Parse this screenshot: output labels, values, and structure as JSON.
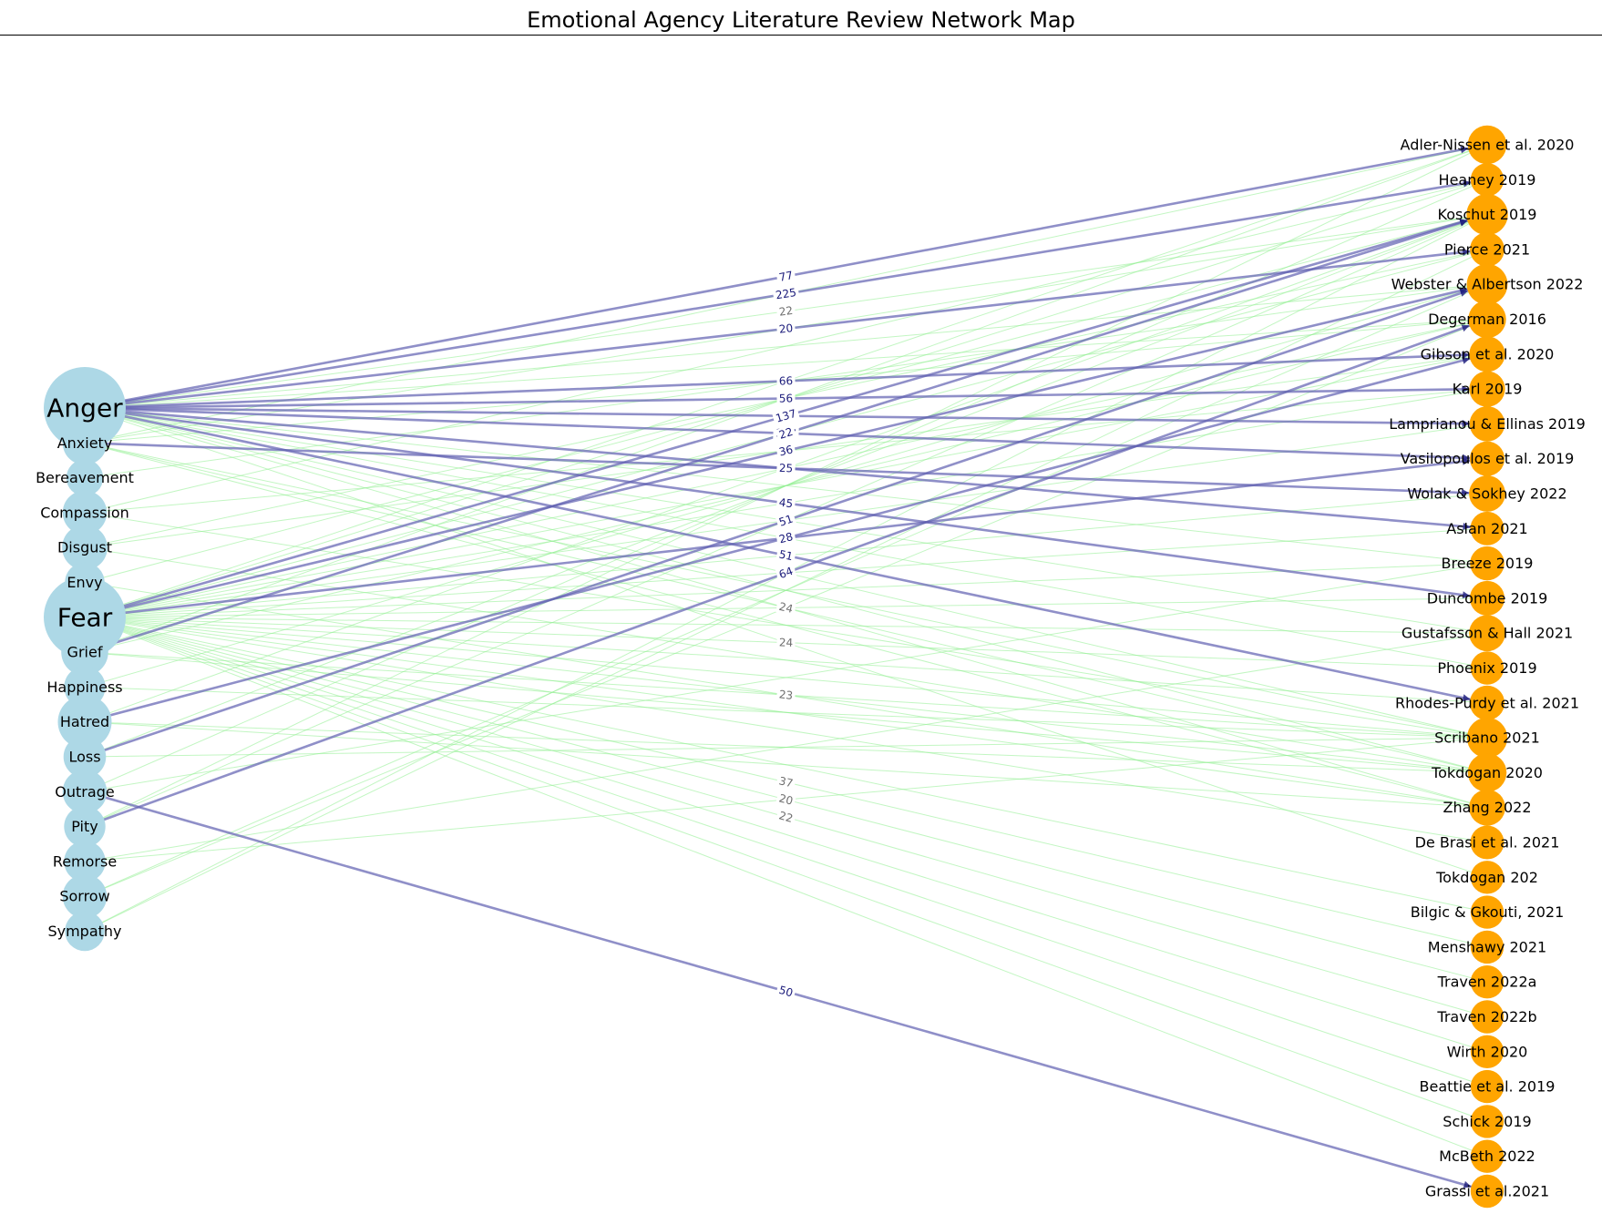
{
  "title": "Emotional Agency Literature Review Network Map",
  "colors": {
    "emotion_node": "#add8e6",
    "paper_node": "#ffa500",
    "major_edge": "#5f5fb0",
    "minor_edge": "#90ee90",
    "major_label": "#1a1a7a",
    "minor_label": "#6e6e6e"
  },
  "emotions": [
    {
      "name": "Anger",
      "size": 1.0
    },
    {
      "name": "Anxiety",
      "size": 0.33
    },
    {
      "name": "Bereavement",
      "size": 0.2
    },
    {
      "name": "Compassion",
      "size": 0.33
    },
    {
      "name": "Disgust",
      "size": 0.35
    },
    {
      "name": "Envy",
      "size": 0.25
    },
    {
      "name": "Fear",
      "size": 1.0
    },
    {
      "name": "Grief",
      "size": 0.38
    },
    {
      "name": "Happiness",
      "size": 0.28
    },
    {
      "name": "Hatred",
      "size": 0.5
    },
    {
      "name": "Loss",
      "size": 0.3
    },
    {
      "name": "Outrage",
      "size": 0.33
    },
    {
      "name": "Pity",
      "size": 0.28
    },
    {
      "name": "Remorse",
      "size": 0.28
    },
    {
      "name": "Sorrow",
      "size": 0.33
    },
    {
      "name": "Sympathy",
      "size": 0.25
    }
  ],
  "papers": [
    {
      "name": "Adler-Nissen et al. 2020",
      "size": 0.52
    },
    {
      "name": "Heaney 2019",
      "size": 0.3
    },
    {
      "name": "Koschut 2019",
      "size": 0.62
    },
    {
      "name": "Pierce 2021",
      "size": 0.35
    },
    {
      "name": "Webster & Albertson 2022",
      "size": 0.6
    },
    {
      "name": "Degerman 2016",
      "size": 0.48
    },
    {
      "name": "Gibson et al. 2020",
      "size": 0.4
    },
    {
      "name": "Karl 2019",
      "size": 0.4
    },
    {
      "name": "Lamprianou & Ellinas 2019",
      "size": 0.38
    },
    {
      "name": "Vasilopoulos et al. 2019",
      "size": 0.36
    },
    {
      "name": "Wolak & Sokhey 2022",
      "size": 0.42
    },
    {
      "name": "Aslan 2021",
      "size": 0.32
    },
    {
      "name": "Breeze 2019",
      "size": 0.34
    },
    {
      "name": "Duncombe 2019",
      "size": 0.36
    },
    {
      "name": "Gustafsson & Hall 2021",
      "size": 0.42
    },
    {
      "name": "Phoenix 2019",
      "size": 0.3
    },
    {
      "name": "Rhodes-Purdy et al. 2021",
      "size": 0.36
    },
    {
      "name": "Scribano 2021",
      "size": 0.58
    },
    {
      "name": "Tokdogan 2020",
      "size": 0.52
    },
    {
      "name": "Zhang 2022",
      "size": 0.42
    },
    {
      "name": "De Brasi et al. 2021",
      "size": 0.32
    },
    {
      "name": "Tokdogan 202",
      "size": 0.3
    },
    {
      "name": "Bilgic & Gkouti, 2021",
      "size": 0.3
    },
    {
      "name": "Menshawy 2021",
      "size": 0.3
    },
    {
      "name": "Traven 2022a",
      "size": 0.3
    },
    {
      "name": "Traven 2022b",
      "size": 0.3
    },
    {
      "name": "Wirth 2020",
      "size": 0.3
    },
    {
      "name": "Beattie et al. 2019",
      "size": 0.3
    },
    {
      "name": "Schick 2019",
      "size": 0.3
    },
    {
      "name": "McBeth 2022",
      "size": 0.3
    },
    {
      "name": "Grassi et al.2021",
      "size": 0.3
    }
  ],
  "major_edges": [
    {
      "from": "Anger",
      "to": "Adler-Nissen et al. 2020",
      "weight": "77"
    },
    {
      "from": "Anger",
      "to": "Heaney 2019",
      "weight": "225"
    },
    {
      "from": "Anger",
      "to": "Pierce 2021",
      "weight": "20"
    },
    {
      "from": "Anger",
      "to": "Gibson et al. 2020",
      "weight": "66"
    },
    {
      "from": "Anger",
      "to": "Karl 2019",
      "weight": "56"
    },
    {
      "from": "Anger",
      "to": "Lamprianou & Ellinas 2019",
      "weight": "46"
    },
    {
      "from": "Anger",
      "to": "Vasilopoulos et al. 2019",
      "weight": "137"
    },
    {
      "from": "Anger",
      "to": "Aslan 2021",
      "weight": "25"
    },
    {
      "from": "Anger",
      "to": "Duncombe 2019",
      "weight": "45"
    },
    {
      "from": "Anger",
      "to": "Rhodes-Purdy et al. 2021",
      "weight": "51"
    },
    {
      "from": "Anxiety",
      "to": "Wolak & Sokhey 2022",
      "weight": "25"
    },
    {
      "from": "Fear",
      "to": "Koschut 2019",
      "weight": "137"
    },
    {
      "from": "Fear",
      "to": "Webster & Albertson 2022",
      "weight": "36"
    },
    {
      "from": "Fear",
      "to": "Vasilopoulos et al. 2019",
      "weight": "28"
    },
    {
      "from": "Grief",
      "to": "Koschut 2019",
      "weight": "22"
    },
    {
      "from": "Hatred",
      "to": "Gibson et al. 2020",
      "weight": "28"
    },
    {
      "from": "Loss",
      "to": "Webster & Albertson 2022",
      "weight": "51"
    },
    {
      "from": "Pity",
      "to": "Degerman 2016",
      "weight": "64"
    },
    {
      "from": "Outrage",
      "to": "Grassi et al.2021",
      "weight": "50"
    }
  ],
  "minor_edges": [
    {
      "from": "Fear",
      "to": "Adler-Nissen et al. 2020"
    },
    {
      "from": "Fear",
      "to": "Heaney 2019"
    },
    {
      "from": "Fear",
      "to": "Pierce 2021"
    },
    {
      "from": "Fear",
      "to": "Degerman 2016"
    },
    {
      "from": "Fear",
      "to": "Gibson et al. 2020"
    },
    {
      "from": "Fear",
      "to": "Karl 2019"
    },
    {
      "from": "Fear",
      "to": "Lamprianou & Ellinas 2019"
    },
    {
      "from": "Fear",
      "to": "Wolak & Sokhey 2022"
    },
    {
      "from": "Fear",
      "to": "Aslan 2021",
      "weight": "37"
    },
    {
      "from": "Fear",
      "to": "Breeze 2019"
    },
    {
      "from": "Fear",
      "to": "Duncombe 2019",
      "weight": "41"
    },
    {
      "from": "Fear",
      "to": "Gustafsson & Hall 2021"
    },
    {
      "from": "Fear",
      "to": "Phoenix 2019",
      "weight": "24"
    },
    {
      "from": "Fear",
      "to": "Rhodes-Purdy et al. 2021"
    },
    {
      "from": "Fear",
      "to": "Scribano 2021"
    },
    {
      "from": "Fear",
      "to": "Tokdogan 2020",
      "weight": "23"
    },
    {
      "from": "Fear",
      "to": "Zhang 2022"
    },
    {
      "from": "Fear",
      "to": "De Brasi et al. 2021"
    },
    {
      "from": "Fear",
      "to": "Bilgic & Gkouti, 2021"
    },
    {
      "from": "Fear",
      "to": "Menshawy 2021",
      "weight": "37"
    },
    {
      "from": "Fear",
      "to": "Traven 2022a",
      "weight": "20"
    },
    {
      "from": "Fear",
      "to": "Traven 2022b",
      "weight": "22"
    },
    {
      "from": "Fear",
      "to": "Wirth 2020"
    },
    {
      "from": "Fear",
      "to": "Beattie et al. 2019"
    },
    {
      "from": "Fear",
      "to": "Schick 2019"
    },
    {
      "from": "Fear",
      "to": "McBeth 2022"
    },
    {
      "from": "Anger",
      "to": "Koschut 2019",
      "weight": "22"
    },
    {
      "from": "Anger",
      "to": "Webster & Albertson 2022"
    },
    {
      "from": "Anger",
      "to": "Degerman 2016"
    },
    {
      "from": "Anger",
      "to": "Breeze 2019"
    },
    {
      "from": "Anger",
      "to": "Gustafsson & Hall 2021"
    },
    {
      "from": "Anger",
      "to": "Scribano 2021"
    },
    {
      "from": "Anger",
      "to": "Tokdogan 2020"
    },
    {
      "from": "Anger",
      "to": "Zhang 2022"
    },
    {
      "from": "Anger",
      "to": "Tokdogan 202"
    },
    {
      "from": "Anger",
      "to": "Phoenix 2019"
    },
    {
      "from": "Anxiety",
      "to": "Adler-Nissen et al. 2020"
    },
    {
      "from": "Anxiety",
      "to": "Degerman 2016"
    },
    {
      "from": "Anxiety",
      "to": "Scribano 2021"
    },
    {
      "from": "Anxiety",
      "to": "Zhang 2022"
    },
    {
      "from": "Anxiety",
      "to": "Tokdogan 2020",
      "weight": "24"
    },
    {
      "from": "Anxiety",
      "to": "Koschut 2019"
    },
    {
      "from": "Bereavement",
      "to": "Webster & Albertson 2022"
    },
    {
      "from": "Compassion",
      "to": "Karl 2019"
    },
    {
      "from": "Compassion",
      "to": "Scribano 2021"
    },
    {
      "from": "Compassion",
      "to": "Heaney 2019"
    },
    {
      "from": "Disgust",
      "to": "Pierce 2021"
    },
    {
      "from": "Disgust",
      "to": "Tokdogan 2020"
    },
    {
      "from": "Disgust",
      "to": "Gibson et al. 2020"
    },
    {
      "from": "Envy",
      "to": "Koschut 2019"
    },
    {
      "from": "Envy",
      "to": "Zhang 2022"
    },
    {
      "from": "Grief",
      "to": "Adler-Nissen et al. 2020"
    },
    {
      "from": "Grief",
      "to": "Degerman 2016"
    },
    {
      "from": "Grief",
      "to": "Tokdogan 2020"
    },
    {
      "from": "Grief",
      "to": "Scribano 2021"
    },
    {
      "from": "Happiness",
      "to": "Webster & Albertson 2022"
    },
    {
      "from": "Happiness",
      "to": "Scribano 2021"
    },
    {
      "from": "Hatred",
      "to": "Koschut 2019"
    },
    {
      "from": "Hatred",
      "to": "Zhang 2022"
    },
    {
      "from": "Hatred",
      "to": "Tokdogan 2020"
    },
    {
      "from": "Loss",
      "to": "Scribano 2021"
    },
    {
      "from": "Loss",
      "to": "Koschut 2019"
    },
    {
      "from": "Outrage",
      "to": "Heaney 2019"
    },
    {
      "from": "Outrage",
      "to": "Breeze 2019"
    },
    {
      "from": "Pity",
      "to": "Adler-Nissen et al. 2020"
    },
    {
      "from": "Pity",
      "to": "Koschut 2019"
    },
    {
      "from": "Remorse",
      "to": "Scribano 2021"
    },
    {
      "from": "Remorse",
      "to": "Gustafsson & Hall 2021"
    },
    {
      "from": "Sorrow",
      "to": "Webster & Albertson 2022"
    },
    {
      "from": "Sorrow",
      "to": "Degerman 2016"
    },
    {
      "from": "Sympathy",
      "to": "Pierce 2021"
    },
    {
      "from": "Sympathy",
      "to": "Koschut 2019"
    }
  ]
}
